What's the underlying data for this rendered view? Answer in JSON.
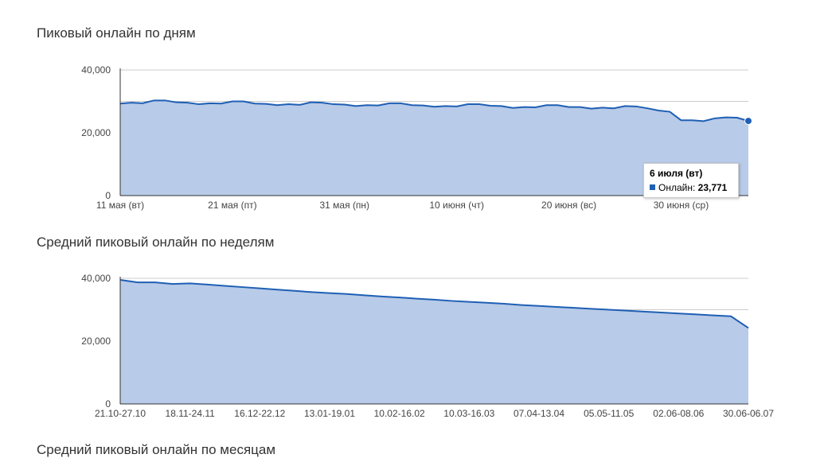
{
  "sections": [
    {
      "title": "Пиковый онлайн по дням"
    },
    {
      "title": "Средний пиковый онлайн по неделям"
    },
    {
      "title": "Средний пиковый онлайн по месяцам"
    }
  ],
  "colors": {
    "line": "#1f5fb4",
    "fill": "#b8cbe8",
    "grid": "#cccccc",
    "axis": "#333333"
  },
  "tooltip": {
    "title": "6 июля (вт)",
    "series_label": "Онлайн:",
    "value": "23,771"
  },
  "chart_data": [
    {
      "type": "area",
      "title": "Пиковый онлайн по дням",
      "ylim": [
        0,
        40000
      ],
      "y_ticks": [
        0,
        20000,
        40000
      ],
      "y_tick_labels": [
        "0",
        "20,000",
        "40,000"
      ],
      "grid": true,
      "x_tick_labels": [
        "11 мая (вт)",
        "21 мая (пт)",
        "31 мая (пн)",
        "10 июня (чт)",
        "20 июня (вс)",
        "30 июня (ср)"
      ],
      "x_tick_indices": [
        0,
        10,
        20,
        30,
        40,
        50
      ],
      "series": [
        {
          "values": [
            29300,
            29600,
            29400,
            30300,
            30300,
            29700,
            29600,
            29100,
            29400,
            29300,
            30000,
            30000,
            29300,
            29200,
            28800,
            29100,
            28900,
            29700,
            29600,
            29100,
            29000,
            28500,
            28800,
            28700,
            29400,
            29400,
            28800,
            28700,
            28300,
            28500,
            28400,
            29100,
            29100,
            28600,
            28500,
            27900,
            28200,
            28100,
            28800,
            28800,
            28200,
            28200,
            27700,
            28000,
            27800,
            28500,
            28400,
            27800,
            27100,
            26700,
            24000,
            24000,
            23700,
            24600,
            24900,
            24800,
            23771
          ]
        }
      ],
      "highlight_index": 56
    },
    {
      "type": "area",
      "title": "Средний пиковый онлайн по неделям",
      "ylim": [
        0,
        40000
      ],
      "y_ticks": [
        0,
        20000,
        40000
      ],
      "y_tick_labels": [
        "0",
        "20,000",
        "40,000"
      ],
      "grid": true,
      "x_tick_labels": [
        "21.10-27.10",
        "18.11-24.11",
        "16.12-22.12",
        "13.01-19.01",
        "10.02-16.02",
        "10.03-16.03",
        "07.04-13.04",
        "05.05-11.05",
        "02.06-08.06",
        "30.06-06.07"
      ],
      "x_tick_indices": [
        0,
        4,
        8,
        12,
        16,
        20,
        24,
        28,
        32,
        36
      ],
      "series": [
        {
          "values": [
            39500,
            38700,
            38700,
            38200,
            38400,
            38000,
            37600,
            37200,
            36800,
            36400,
            36000,
            35600,
            35300,
            35000,
            34600,
            34200,
            33900,
            33500,
            33200,
            32800,
            32500,
            32200,
            31900,
            31500,
            31200,
            30900,
            30600,
            30300,
            30000,
            29700,
            29400,
            29100,
            28800,
            28500,
            28200,
            27900,
            24200
          ]
        }
      ]
    }
  ]
}
